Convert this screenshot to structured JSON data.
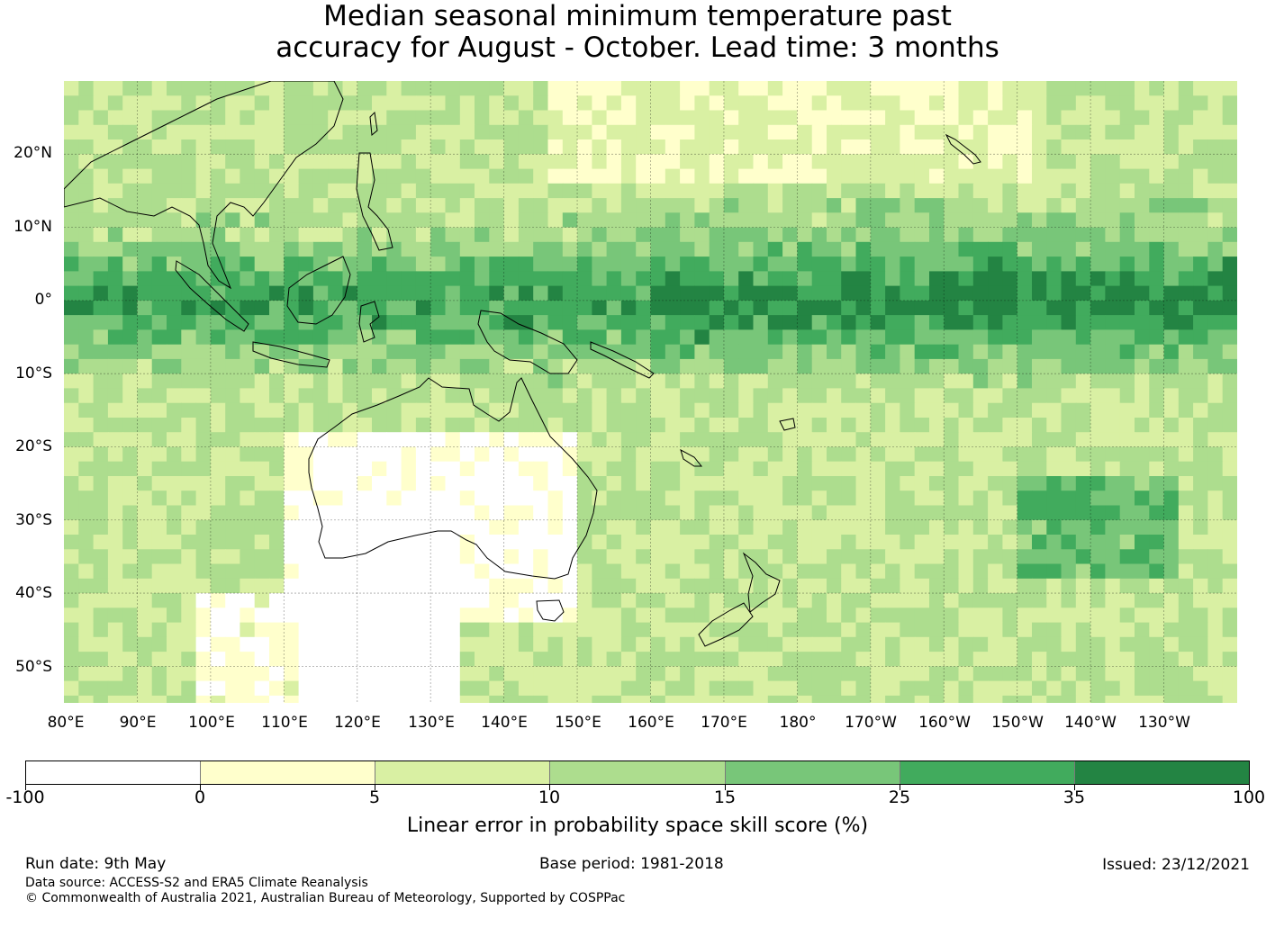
{
  "title": {
    "line1": "Median seasonal minimum temperature past",
    "line2": "accuracy for August - October. Lead time: 3 months"
  },
  "map": {
    "lat_range": [
      -55,
      30
    ],
    "lon_range": [
      80,
      240
    ],
    "latitude_labels": [
      "20°N",
      "10°N",
      "0°",
      "10°S",
      "20°S",
      "30°S",
      "40°S",
      "50°S"
    ],
    "longitude_labels": [
      "80°E",
      "90°E",
      "100°E",
      "110°E",
      "120°E",
      "130°E",
      "140°E",
      "150°E",
      "160°E",
      "170°E",
      "180°",
      "170°W",
      "160°W",
      "150°W",
      "140°W",
      "130°W"
    ],
    "gridlines": true
  },
  "colorbar": {
    "ticks": [
      "-100",
      "0",
      "5",
      "10",
      "15",
      "25",
      "35",
      "100"
    ],
    "colors": [
      "#ffffff",
      "#ffffcc",
      "#d9f0a3",
      "#addd8e",
      "#78c679",
      "#41ab5d",
      "#238443"
    ],
    "label": "Linear error in probability space skill score (%)"
  },
  "footer": {
    "run_date": "Run date: 9th May",
    "base_period": "Base period: 1981-2018",
    "issued": "Issued: 23/12/2021",
    "data_source": "Data source: ACCESS-S2 and ERA5 Climate Reanalysis",
    "copyright": "© Commonwealth of Australia 2021, Australian Bureau of Meteorology, Supported by COSPPac"
  }
}
